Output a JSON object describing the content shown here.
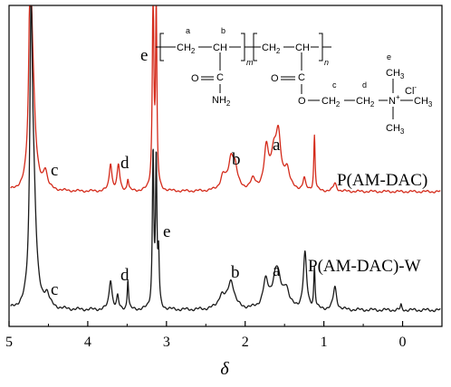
{
  "chart_data": {
    "type": "line",
    "x_axis": {
      "label": "δ",
      "lim": [
        5,
        -0.5
      ],
      "reversed": true,
      "ticks": [
        5,
        4,
        3,
        2,
        1,
        0
      ],
      "tick_labels": [
        "5",
        "4",
        "3",
        "2",
        "1",
        "0"
      ]
    },
    "y_axis": {
      "label": "",
      "ticks_shown": false
    },
    "grid": false,
    "series": [
      {
        "name": "P(AM-DAC)",
        "color": "#d42a1a",
        "label": "P(AM-DAC)",
        "peaks": [
          {
            "x": 4.73,
            "h": 1.0,
            "w": 0.02
          },
          {
            "x": 4.7,
            "h": 0.45,
            "w": 0.04
          },
          {
            "x": 4.54,
            "h": 0.09,
            "w": 0.03
          },
          {
            "x": 3.71,
            "h": 0.14,
            "w": 0.02
          },
          {
            "x": 3.61,
            "h": 0.13,
            "w": 0.02
          },
          {
            "x": 3.49,
            "h": 0.06,
            "w": 0.012
          },
          {
            "x": 3.17,
            "h": 1.0,
            "w": 0.012
          },
          {
            "x": 3.13,
            "h": 0.9,
            "w": 0.01
          },
          {
            "x": 2.28,
            "h": 0.07,
            "w": 0.04
          },
          {
            "x": 2.18,
            "h": 0.14,
            "w": 0.04
          },
          {
            "x": 2.13,
            "h": 0.1,
            "w": 0.04
          },
          {
            "x": 1.9,
            "h": 0.05,
            "w": 0.04
          },
          {
            "x": 1.73,
            "h": 0.2,
            "w": 0.035
          },
          {
            "x": 1.64,
            "h": 0.15,
            "w": 0.04
          },
          {
            "x": 1.58,
            "h": 0.26,
            "w": 0.04
          },
          {
            "x": 1.47,
            "h": 0.1,
            "w": 0.04
          },
          {
            "x": 1.25,
            "h": 0.06,
            "w": 0.02
          },
          {
            "x": 1.12,
            "h": 0.28,
            "w": 0.01
          },
          {
            "x": 0.86,
            "h": 0.04,
            "w": 0.025
          }
        ]
      },
      {
        "name": "P(AM-DAC)-W",
        "color": "#1a1a1a",
        "label": "P(AM-DAC)-W",
        "peaks": [
          {
            "x": 4.72,
            "h": 1.0,
            "w": 0.018
          },
          {
            "x": 4.69,
            "h": 0.45,
            "w": 0.04
          },
          {
            "x": 4.52,
            "h": 0.05,
            "w": 0.04
          },
          {
            "x": 3.71,
            "h": 0.12,
            "w": 0.022
          },
          {
            "x": 3.62,
            "h": 0.05,
            "w": 0.015
          },
          {
            "x": 3.49,
            "h": 0.12,
            "w": 0.01
          },
          {
            "x": 3.17,
            "h": 0.62,
            "w": 0.011
          },
          {
            "x": 3.13,
            "h": 0.58,
            "w": 0.01
          },
          {
            "x": 3.1,
            "h": 0.2,
            "w": 0.01
          },
          {
            "x": 2.3,
            "h": 0.05,
            "w": 0.05
          },
          {
            "x": 2.18,
            "h": 0.11,
            "w": 0.05
          },
          {
            "x": 1.74,
            "h": 0.1,
            "w": 0.04
          },
          {
            "x": 1.6,
            "h": 0.16,
            "w": 0.06
          },
          {
            "x": 1.48,
            "h": 0.07,
            "w": 0.04
          },
          {
            "x": 1.24,
            "h": 0.22,
            "w": 0.025
          },
          {
            "x": 1.12,
            "h": 0.16,
            "w": 0.01
          },
          {
            "x": 0.86,
            "h": 0.09,
            "w": 0.025
          },
          {
            "x": 0.02,
            "h": 0.02,
            "w": 0.01
          }
        ]
      }
    ],
    "annotations": [
      {
        "text": "c",
        "x": 4.53,
        "series": "P(AM-DAC)"
      },
      {
        "text": "d",
        "x": 3.67,
        "series": "P(AM-DAC)"
      },
      {
        "text": "e",
        "x": 3.33,
        "series": "P(AM-DAC)"
      },
      {
        "text": "b",
        "x": 2.16,
        "series": "P(AM-DAC)"
      },
      {
        "text": "a",
        "x": 1.58,
        "series": "P(AM-DAC)"
      },
      {
        "text": "c",
        "x": 4.53,
        "series": "P(AM-DAC)-W"
      },
      {
        "text": "d",
        "x": 3.67,
        "series": "P(AM-DAC)-W"
      },
      {
        "text": "e",
        "x": 2.95,
        "series": "P(AM-DAC)-W"
      },
      {
        "text": "b",
        "x": 2.18,
        "series": "P(AM-DAC)-W"
      },
      {
        "text": "a",
        "x": 1.6,
        "series": "P(AM-DAC)-W"
      }
    ]
  },
  "structure": {
    "label_a": "a",
    "label_b": "b",
    "label_c": "c",
    "label_d": "d",
    "label_e": "e",
    "ch2_1": "CH",
    "ch2_1_sub": "2",
    "ch_1": "CH",
    "ch2_2": "CH",
    "ch2_2_sub": "2",
    "ch_2": "CH",
    "sub_m": "m",
    "sub_n": "n",
    "c_amide": "C",
    "o_amide": "O",
    "nh2": "NH",
    "nh2_sub": "2",
    "c_ester": "C",
    "o_ester_dbl": "O",
    "o_ester": "O",
    "ch2_c": "CH",
    "ch2_c_sub": "2",
    "ch2_d": "CH",
    "ch2_d_sub": "2",
    "n_plus": "N",
    "plus": "+",
    "cl": "Cl",
    "cl_minus": "-",
    "ch3_top": "CH",
    "ch3_top_sub": "3",
    "ch3_right": "CH",
    "ch3_right_sub": "3",
    "ch3_bottom": "CH",
    "ch3_bottom_sub": "3"
  }
}
